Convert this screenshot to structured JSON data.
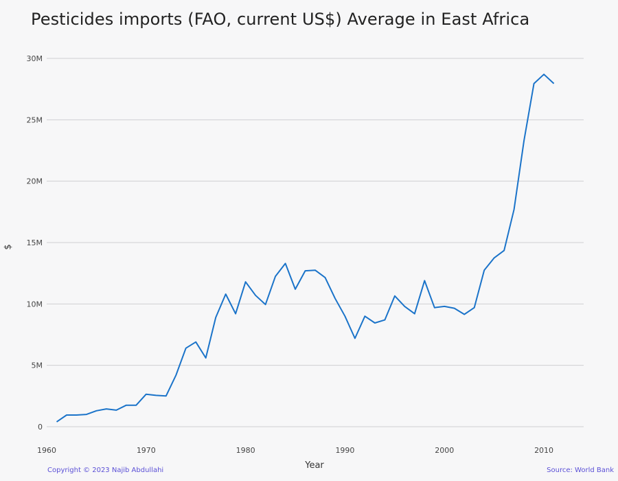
{
  "chart_data": {
    "type": "line",
    "title": "Pesticides imports (FAO, current US$) Average in East Africa",
    "xlabel": "Year",
    "ylabel": "$",
    "xlim": [
      1960,
      2014
    ],
    "ylim": [
      0,
      30000000
    ],
    "xticks": [
      1960,
      1970,
      1980,
      1990,
      2000,
      2010
    ],
    "xtick_labels": [
      "1960",
      "1970",
      "1980",
      "1990",
      "2000",
      "2010"
    ],
    "yticks": [
      0,
      5000000,
      10000000,
      15000000,
      20000000,
      25000000,
      30000000
    ],
    "ytick_labels": [
      "0",
      "5M",
      "10M",
      "15M",
      "20M",
      "25M",
      "30M"
    ],
    "grid": true,
    "line_color": "#1a73c9",
    "series": [
      {
        "x": [
          1961,
          1962,
          1963,
          1964,
          1965,
          1966,
          1967,
          1968,
          1969,
          1970,
          1971,
          1972,
          1973,
          1974,
          1975,
          1976,
          1977,
          1978,
          1979,
          1980,
          1981,
          1982,
          1983,
          1984,
          1985,
          1986,
          1987,
          1988,
          1989,
          1990,
          1991,
          1992,
          1993,
          1994,
          1995,
          1996,
          1997,
          1998,
          1999,
          2000,
          2001,
          2002,
          2003,
          2004,
          2005,
          2006,
          2007,
          2008,
          2009,
          2010,
          2011
        ],
        "values": [
          400000,
          950000,
          950000,
          1000000,
          1300000,
          1450000,
          1350000,
          1750000,
          1750000,
          2650000,
          2550000,
          2500000,
          4200000,
          6400000,
          6900000,
          5600000,
          8900000,
          10800000,
          9200000,
          11800000,
          10700000,
          9950000,
          12250000,
          13300000,
          11200000,
          12700000,
          12750000,
          12150000,
          10450000,
          9000000,
          7200000,
          9000000,
          8450000,
          8700000,
          10650000,
          9800000,
          9200000,
          11900000,
          9700000,
          9800000,
          9650000,
          9150000,
          9700000,
          12750000,
          13750000,
          14350000,
          17700000,
          23300000,
          27950000,
          28700000,
          27950000
        ]
      }
    ]
  },
  "footer": {
    "copyright": "Copyright © 2023 Najib Abdullahi",
    "source": "Source: World Bank"
  }
}
